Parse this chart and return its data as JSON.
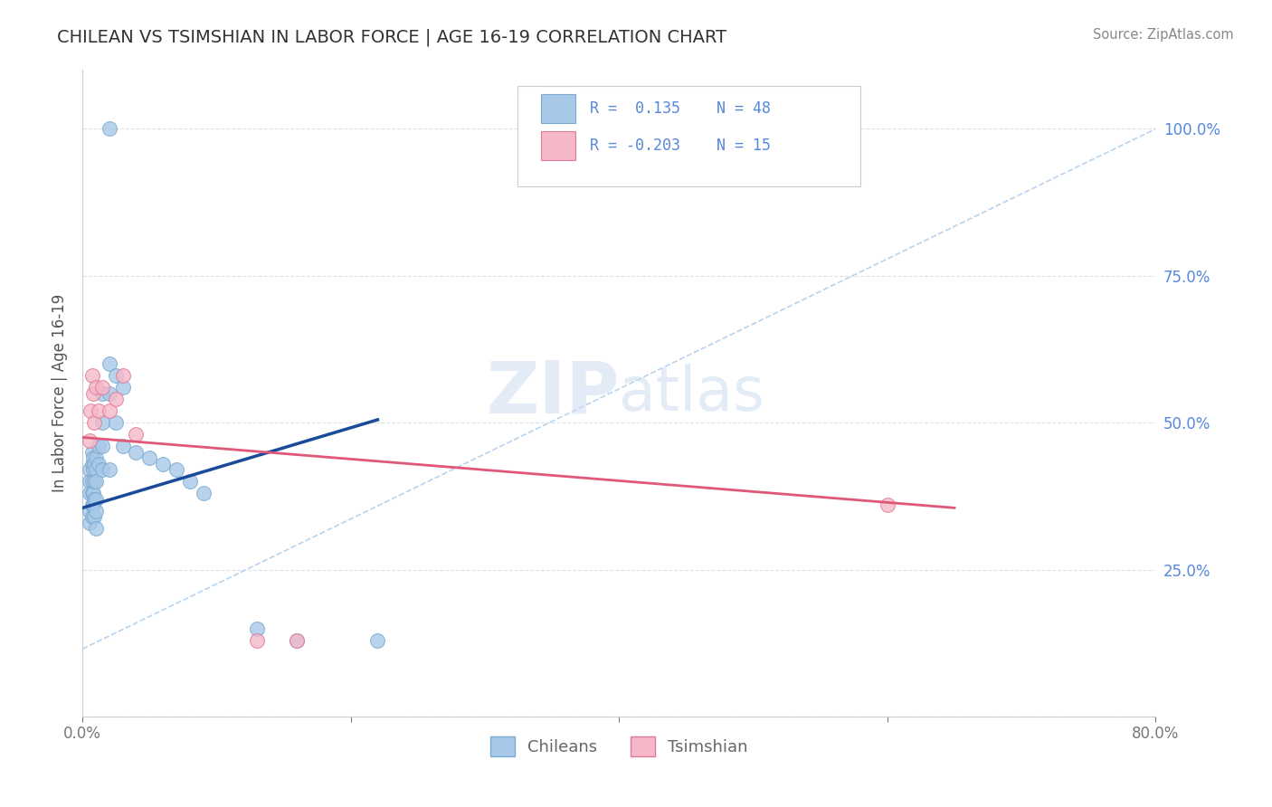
{
  "title": "CHILEAN VS TSIMSHIAN IN LABOR FORCE | AGE 16-19 CORRELATION CHART",
  "source": "Source: ZipAtlas.com",
  "ylabel": "In Labor Force | Age 16-19",
  "xlim": [
    0.0,
    0.8
  ],
  "ylim": [
    0.0,
    1.1
  ],
  "blue_color": "#A8C8E8",
  "blue_edge": "#7AAAD0",
  "pink_color": "#F5B8C8",
  "pink_edge": "#E07898",
  "blue_line_color": "#1A4A9A",
  "pink_line_color": "#E05878",
  "dashed_color": "#A8C8E8",
  "background_color": "#FFFFFF",
  "grid_color": "#E0E0E0",
  "right_tick_color": "#5588DD",
  "watermark_zip": "ZIP",
  "watermark_atlas": "atlas",
  "chileans_x": [
    0.005,
    0.005,
    0.005,
    0.005,
    0.005,
    0.007,
    0.007,
    0.007,
    0.007,
    0.007,
    0.007,
    0.008,
    0.008,
    0.008,
    0.008,
    0.009,
    0.009,
    0.009,
    0.009,
    0.01,
    0.01,
    0.01,
    0.01,
    0.01,
    0.01,
    0.012,
    0.012,
    0.015,
    0.015,
    0.015,
    0.015,
    0.02,
    0.02,
    0.02,
    0.025,
    0.025,
    0.03,
    0.03,
    0.04,
    0.05,
    0.06,
    0.07,
    0.08,
    0.09,
    0.13,
    0.16,
    0.22,
    0.02
  ],
  "chileans_y": [
    0.42,
    0.4,
    0.38,
    0.35,
    0.33,
    0.45,
    0.43,
    0.4,
    0.38,
    0.36,
    0.34,
    0.44,
    0.42,
    0.38,
    0.36,
    0.43,
    0.4,
    0.37,
    0.34,
    0.44,
    0.42,
    0.4,
    0.37,
    0.35,
    0.32,
    0.46,
    0.43,
    0.55,
    0.5,
    0.46,
    0.42,
    0.6,
    0.55,
    0.42,
    0.58,
    0.5,
    0.56,
    0.46,
    0.45,
    0.44,
    0.43,
    0.42,
    0.4,
    0.38,
    0.15,
    0.13,
    0.13,
    1.0
  ],
  "tsimshian_x": [
    0.005,
    0.006,
    0.007,
    0.008,
    0.009,
    0.01,
    0.012,
    0.015,
    0.02,
    0.025,
    0.03,
    0.04,
    0.13,
    0.16,
    0.6
  ],
  "tsimshian_y": [
    0.47,
    0.52,
    0.58,
    0.55,
    0.5,
    0.56,
    0.52,
    0.56,
    0.52,
    0.54,
    0.58,
    0.48,
    0.13,
    0.13,
    0.36
  ],
  "blue_line_x": [
    0.0,
    0.22
  ],
  "blue_line_y": [
    0.355,
    0.505
  ],
  "pink_line_x": [
    0.0,
    0.65
  ],
  "pink_line_y": [
    0.475,
    0.355
  ],
  "dash_line_x": [
    0.0,
    0.8
  ],
  "dash_line_y": [
    0.115,
    1.0
  ]
}
